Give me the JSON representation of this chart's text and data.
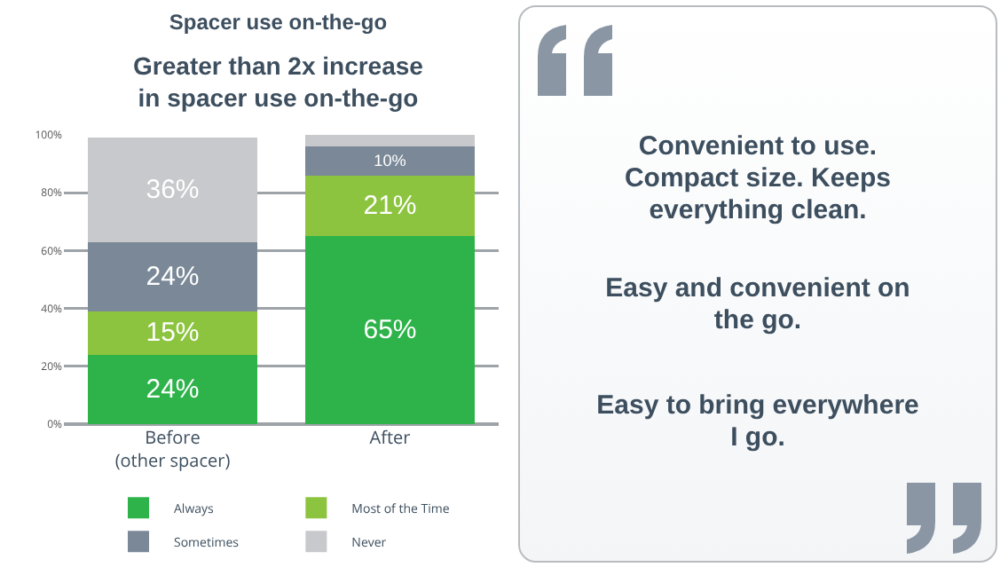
{
  "chart_data": [
    {
      "type": "bar",
      "title": "Spacer use on-the-go",
      "subtitle": "Greater than 2x increase\nin spacer use on-the-go",
      "categories": [
        "Before\n(other spacer)",
        "After"
      ],
      "stacked": true,
      "series": [
        {
          "name": "Always",
          "color": "#2db34a",
          "values": [
            24,
            65
          ],
          "value_labels": [
            "24%",
            "65%"
          ]
        },
        {
          "name": "Most of the Time",
          "color": "#8cc43f",
          "values": [
            15,
            21
          ],
          "value_labels": [
            "15%",
            "21%"
          ]
        },
        {
          "name": "Sometimes",
          "color": "#7a8897",
          "values": [
            24,
            10
          ],
          "value_labels": [
            "24%",
            "10%"
          ]
        },
        {
          "name": "Never",
          "color": "#c8c9cc",
          "values": [
            36,
            4
          ],
          "value_labels": [
            "36%",
            null
          ]
        }
      ],
      "ylim": [
        0,
        100
      ],
      "yticks": [
        {
          "value": 0,
          "label": "0%"
        },
        {
          "value": 20,
          "label": "20%"
        },
        {
          "value": 40,
          "label": "40%"
        },
        {
          "value": 60,
          "label": "60%"
        },
        {
          "value": 80,
          "label": "80%"
        },
        {
          "value": 100,
          "label": "100%"
        }
      ],
      "grid": "y",
      "legend": "bottom"
    },
    {
      "type": "other",
      "annotations": [
        "Convenient to use. Compact size. Keeps everything clean.",
        "Easy and convenient on the go.",
        "Easy to bring everywhere I go."
      ]
    }
  ]
}
